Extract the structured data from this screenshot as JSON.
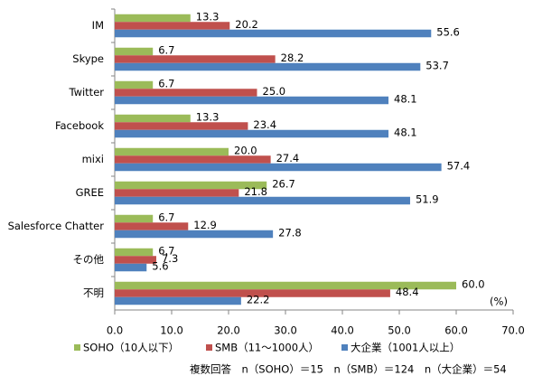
{
  "chart_data": {
    "type": "hbar",
    "categories": [
      "IM",
      "Skype",
      "Twitter",
      "Facebook",
      "mixi",
      "GREE",
      "Salesforce Chatter",
      "その他",
      "不明"
    ],
    "series": [
      {
        "name": "SOHO（10人以下）",
        "color": "#9bbb59",
        "values": [
          13.3,
          6.7,
          6.7,
          13.3,
          20.0,
          26.7,
          6.7,
          6.7,
          60.0
        ],
        "value_labels": [
          "13.3",
          "6.7",
          "6.7",
          "13.3",
          "20.0",
          "26.7",
          "6.7",
          "6.7",
          "60.0"
        ]
      },
      {
        "name": "SMB（11～1000人）",
        "color": "#c0504d",
        "values": [
          20.2,
          28.2,
          25.0,
          23.4,
          27.4,
          21.8,
          12.9,
          7.3,
          48.4
        ],
        "value_labels": [
          "20.2",
          "28.2",
          "25.0",
          "23.4",
          "27.4",
          "21.8",
          "12.9",
          "7.3",
          "48.4"
        ]
      },
      {
        "name": "大企業（1001人以上）",
        "color": "#4f81bd",
        "values": [
          55.6,
          53.7,
          48.1,
          48.1,
          57.4,
          51.9,
          27.8,
          5.6,
          22.2
        ],
        "value_labels": [
          "55.6",
          "53.7",
          "48.1",
          "48.1",
          "57.4",
          "51.9",
          "27.8",
          "5.6",
          "22.2"
        ]
      }
    ],
    "xlim": [
      0,
      70
    ],
    "xticks": [
      {
        "value": 0,
        "label": "0.0"
      },
      {
        "value": 10,
        "label": "10.0"
      },
      {
        "value": 20,
        "label": "20.0"
      },
      {
        "value": 30,
        "label": "30.0"
      },
      {
        "value": 40,
        "label": "40.0"
      },
      {
        "value": 50,
        "label": "50.0"
      },
      {
        "value": 60,
        "label": "60.0"
      },
      {
        "value": 70,
        "label": "70.0"
      }
    ],
    "grid": false,
    "unit_label": "(%)",
    "note": "複数回答　n（SOHO）＝15　n（SMB）＝124　n（大企業）＝54"
  }
}
